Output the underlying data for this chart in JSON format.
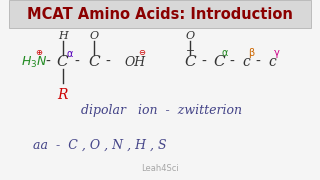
{
  "title": "MCAT Amino Acids: Introduction",
  "title_color": "#8B0000",
  "title_bg": "#d8d8d8",
  "bg_color": "#f5f5f5",
  "watermark": "Leah4Sci",
  "dipolar_text": "dipolar   ion  -  zwitterion",
  "dipolar_color": "#444488",
  "aa_text": "aa  -  C , O , N , H , S",
  "aa_color": "#444488"
}
